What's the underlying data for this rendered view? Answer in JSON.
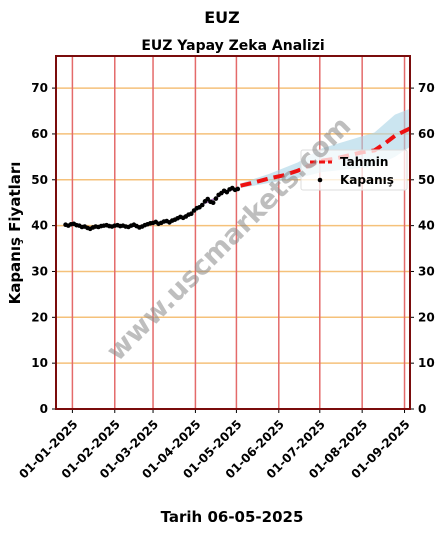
{
  "chart_data": {
    "type": "line",
    "title": "EUZ",
    "subtitle": "EUZ Yapay Zeka Analizi",
    "xlabel": "Tarih 06-05-2025",
    "ylabel": "Kapanış Fiyatları",
    "ylim": [
      0,
      77
    ],
    "yticks": [
      0,
      10,
      20,
      30,
      40,
      50,
      60,
      70
    ],
    "xlim": [
      "2024-12-20",
      "2025-09-05"
    ],
    "xticks": [
      "01-01-2025",
      "01-02-2025",
      "01-03-2025",
      "01-04-2025",
      "01-05-2025",
      "01-06-2025",
      "01-07-2025",
      "01-08-2025",
      "01-09-2025"
    ],
    "grid": true,
    "legend": {
      "position": "right",
      "entries": [
        "Tahmin",
        "Kapanış"
      ]
    },
    "watermark": "www.uscmarkets.com",
    "colors": {
      "closing": "#000000",
      "fit_line": "#9b59b6",
      "forecast": "#ee1111",
      "band": "#a9d3e6",
      "hgrid": "#f5c17a",
      "vgrid": "#e46a6a",
      "frame": "#7a0c0c"
    },
    "series": [
      {
        "name": "Kapanış",
        "type": "scatter",
        "points": [
          [
            "2024-12-27",
            40.2
          ],
          [
            "2024-12-29",
            40.0
          ],
          [
            "2024-12-31",
            40.3
          ],
          [
            "2025-01-02",
            40.4
          ],
          [
            "2025-01-04",
            40.1
          ],
          [
            "2025-01-06",
            40.0
          ],
          [
            "2025-01-08",
            39.7
          ],
          [
            "2025-01-10",
            39.8
          ],
          [
            "2025-01-12",
            39.5
          ],
          [
            "2025-01-14",
            39.3
          ],
          [
            "2025-01-16",
            39.6
          ],
          [
            "2025-01-18",
            39.8
          ],
          [
            "2025-01-20",
            39.7
          ],
          [
            "2025-01-22",
            39.9
          ],
          [
            "2025-01-24",
            40.0
          ],
          [
            "2025-01-26",
            40.1
          ],
          [
            "2025-01-28",
            39.9
          ],
          [
            "2025-01-30",
            39.8
          ],
          [
            "2025-02-01",
            40.0
          ],
          [
            "2025-02-03",
            40.1
          ],
          [
            "2025-02-05",
            39.9
          ],
          [
            "2025-02-07",
            40.0
          ],
          [
            "2025-02-09",
            39.8
          ],
          [
            "2025-02-11",
            39.7
          ],
          [
            "2025-02-13",
            40.0
          ],
          [
            "2025-02-15",
            40.2
          ],
          [
            "2025-02-17",
            39.9
          ],
          [
            "2025-02-19",
            39.6
          ],
          [
            "2025-02-21",
            39.8
          ],
          [
            "2025-02-23",
            40.1
          ],
          [
            "2025-02-25",
            40.3
          ],
          [
            "2025-02-27",
            40.5
          ],
          [
            "2025-03-01",
            40.6
          ],
          [
            "2025-03-03",
            40.8
          ],
          [
            "2025-03-05",
            40.4
          ],
          [
            "2025-03-07",
            40.6
          ],
          [
            "2025-03-09",
            40.9
          ],
          [
            "2025-03-11",
            41.0
          ],
          [
            "2025-03-13",
            40.7
          ],
          [
            "2025-03-15",
            41.1
          ],
          [
            "2025-03-17",
            41.3
          ],
          [
            "2025-03-19",
            41.6
          ],
          [
            "2025-03-21",
            41.9
          ],
          [
            "2025-03-23",
            41.7
          ],
          [
            "2025-03-25",
            42.0
          ],
          [
            "2025-03-27",
            42.4
          ],
          [
            "2025-03-29",
            42.6
          ],
          [
            "2025-03-31",
            43.3
          ],
          [
            "2025-04-02",
            43.8
          ],
          [
            "2025-04-04",
            44.0
          ],
          [
            "2025-04-06",
            44.5
          ],
          [
            "2025-04-08",
            45.3
          ],
          [
            "2025-04-10",
            45.8
          ],
          [
            "2025-04-12",
            45.2
          ],
          [
            "2025-04-14",
            45.0
          ],
          [
            "2025-04-16",
            45.9
          ],
          [
            "2025-04-18",
            46.7
          ],
          [
            "2025-04-20",
            47.1
          ],
          [
            "2025-04-22",
            47.6
          ],
          [
            "2025-04-24",
            47.3
          ],
          [
            "2025-04-26",
            47.9
          ],
          [
            "2025-04-28",
            48.2
          ],
          [
            "2025-04-30",
            47.8
          ],
          [
            "2025-05-02",
            48.0
          ]
        ]
      },
      {
        "name": "Tahmin",
        "type": "line",
        "dashed": true,
        "points": [
          [
            "2025-05-04",
            48.7
          ],
          [
            "2025-05-15",
            49.5
          ],
          [
            "2025-05-25",
            50.3
          ],
          [
            "2025-06-05",
            51.0
          ],
          [
            "2025-06-15",
            52.0
          ],
          [
            "2025-06-25",
            53.3
          ],
          [
            "2025-07-03",
            54.2
          ],
          [
            "2025-07-12",
            54.6
          ],
          [
            "2025-07-22",
            55.3
          ],
          [
            "2025-08-01",
            56.0
          ],
          [
            "2025-08-10",
            56.4
          ],
          [
            "2025-08-18",
            58.0
          ],
          [
            "2025-08-25",
            59.6
          ],
          [
            "2025-09-05",
            61.2
          ]
        ]
      },
      {
        "name": "",
        "type": "band",
        "points": [
          [
            "2025-05-04",
            48.2,
            49.2
          ],
          [
            "2025-05-25",
            49.3,
            51.3
          ],
          [
            "2025-06-15",
            50.4,
            53.8
          ],
          [
            "2025-07-03",
            51.7,
            56.9
          ],
          [
            "2025-07-22",
            52.3,
            58.6
          ],
          [
            "2025-08-10",
            52.9,
            60.3
          ],
          [
            "2025-08-25",
            55.0,
            64.2
          ],
          [
            "2025-09-05",
            57.2,
            65.5
          ]
        ]
      }
    ]
  }
}
